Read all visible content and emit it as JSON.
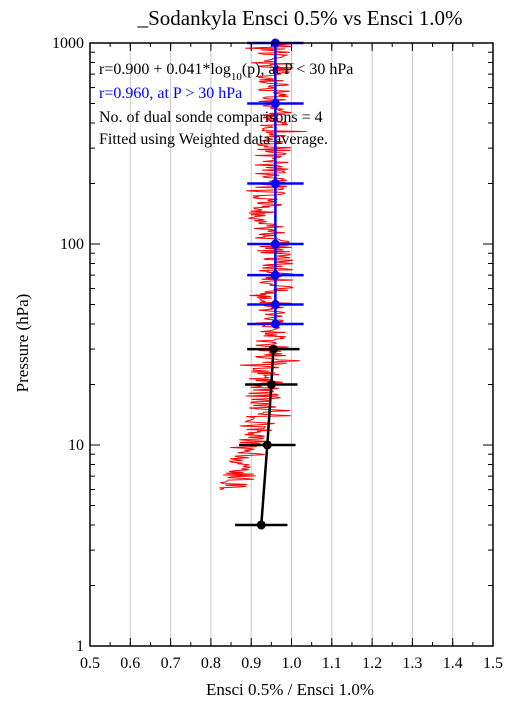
{
  "chart_data": {
    "type": "scatter",
    "title": "_Sodankyla Ensci 0.5% vs Ensci 1.0%",
    "xlabel": "Ensci 0.5% / Ensci 1.0%",
    "ylabel": "Pressure (hPa)",
    "xlim": [
      0.5,
      1.5
    ],
    "ylim": [
      1000,
      1
    ],
    "yscale": "log",
    "grid": "vertical",
    "x_ticks": [
      0.5,
      0.6,
      0.7,
      0.8,
      0.9,
      1.0,
      1.1,
      1.2,
      1.3,
      1.4,
      1.5
    ],
    "x_tick_labels": [
      "0.5",
      "0.6",
      "0.7",
      "0.8",
      "0.9",
      "1.0",
      "1.1",
      "1.2",
      "1.3",
      "1.4",
      "1.5"
    ],
    "y_ticks": [
      1,
      10,
      100,
      1000
    ],
    "y_tick_labels": [
      "1",
      "10",
      "100",
      "1000"
    ],
    "annotations": [
      {
        "parts": [
          {
            "text": "r=0.900 + 0.041*log",
            "style": "normal"
          },
          {
            "text": "10",
            "style": "sub"
          },
          {
            "text": "(p), at P < 30 hPa",
            "style": "normal"
          }
        ],
        "color": "#000000"
      },
      {
        "parts": [
          {
            "text": "r=0.960, at P > 30 hPa",
            "style": "normal"
          }
        ],
        "color": "#0000ff"
      },
      {
        "parts": [
          {
            "text": "No. of dual sonde comparisons = 4",
            "style": "normal"
          }
        ],
        "color": "#000000"
      },
      {
        "parts": [
          {
            "text": "Fitted using Weighted data average.",
            "style": "normal"
          }
        ],
        "color": "#000000"
      }
    ],
    "series": [
      {
        "style": "line-with-points",
        "color": "#000000",
        "points": [
          {
            "p": 4,
            "r": 0.925,
            "xerr": 0.065
          },
          {
            "p": 10,
            "r": 0.94,
            "xerr": 0.07
          },
          {
            "p": 20,
            "r": 0.95,
            "xerr": 0.065
          },
          {
            "p": 30,
            "r": 0.955,
            "xerr": 0.065
          }
        ]
      },
      {
        "style": "vertical-line-with-points",
        "color": "#0000ff",
        "points": [
          {
            "p": 40,
            "r": 0.96,
            "xerr": 0.07
          },
          {
            "p": 50,
            "r": 0.96,
            "xerr": 0.07
          },
          {
            "p": 70,
            "r": 0.96,
            "xerr": 0.07
          },
          {
            "p": 100,
            "r": 0.96,
            "xerr": 0.07
          },
          {
            "p": 200,
            "r": 0.96,
            "xerr": 0.07
          },
          {
            "p": 500,
            "r": 0.96,
            "xerr": 0.07
          },
          {
            "p": 1000,
            "r": 0.96,
            "xerr": 0.07
          }
        ]
      },
      {
        "style": "noisy-profile",
        "color": "#ff0000",
        "points": [
          {
            "p": 6,
            "r": 0.86
          },
          {
            "p": 7,
            "r": 0.87
          },
          {
            "p": 8,
            "r": 0.88
          },
          {
            "p": 10,
            "r": 0.9
          },
          {
            "p": 13,
            "r": 0.92
          },
          {
            "p": 17,
            "r": 0.93
          },
          {
            "p": 22,
            "r": 0.94
          },
          {
            "p": 30,
            "r": 0.95
          },
          {
            "p": 40,
            "r": 0.955
          },
          {
            "p": 60,
            "r": 0.96
          },
          {
            "p": 80,
            "r": 0.965
          },
          {
            "p": 100,
            "r": 0.955
          },
          {
            "p": 130,
            "r": 0.93
          },
          {
            "p": 180,
            "r": 0.95
          },
          {
            "p": 300,
            "r": 0.955
          },
          {
            "p": 500,
            "r": 0.96
          },
          {
            "p": 1000,
            "r": 0.96
          }
        ]
      }
    ]
  }
}
